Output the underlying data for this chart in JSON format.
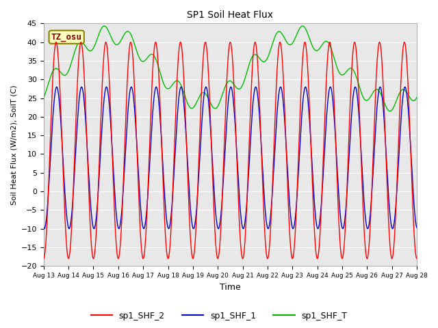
{
  "title": "SP1 Soil Heat Flux",
  "xlabel": "Time",
  "ylabel": "Soil Heat Flux (W/m2), SoilT (C)",
  "ylim": [
    -20,
    45
  ],
  "yticks": [
    -20,
    -15,
    -10,
    -5,
    0,
    5,
    10,
    15,
    20,
    25,
    30,
    35,
    40,
    45
  ],
  "fig_bg": "#ffffff",
  "plot_bg": "#e8e8e8",
  "grid_color": "#ffffff",
  "tz_label": "TZ_osu",
  "tz_fg": "#8b0000",
  "tz_bg": "#ffffc0",
  "tz_border": "#8b8000",
  "legend_entries": [
    "sp1_SHF_2",
    "sp1_SHF_1",
    "sp1_SHF_T"
  ],
  "line_colors": [
    "#ff0000",
    "#0000cc",
    "#00bb00"
  ],
  "n_days": 15,
  "start_day": 13,
  "points_per_day": 96,
  "shf2_amp": 29,
  "shf2_mean": 11,
  "shf1_amp": 19,
  "shf1_mean": 9,
  "shft_slow_amp": 9,
  "shft_slow_period": 7.5,
  "shft_mean": 33,
  "shft_daily_amp": 8,
  "shft_phase": 0.5
}
